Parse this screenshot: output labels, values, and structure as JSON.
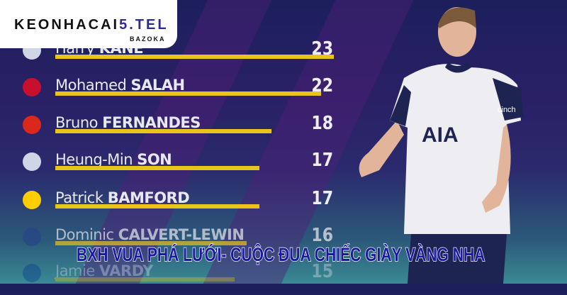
{
  "logo": {
    "main": "KEONHACAI",
    "accent": "5.TEL",
    "sub": "BAZOKA"
  },
  "headline": "BXH VUA PHÁ LƯỚI- CUỘC ĐUA CHIẾC GIÀY VÀNG NHA",
  "leaderboard": [
    {
      "first": "Harry",
      "last": "KANE",
      "goals": "23",
      "club_color": "#cfd6e6"
    },
    {
      "first": "Mohamed",
      "last": "SALAH",
      "goals": "22",
      "club_color": "#c8102e"
    },
    {
      "first": "Bruno",
      "last": "FERNANDES",
      "goals": "18",
      "club_color": "#da291c"
    },
    {
      "first": "Heung-Min",
      "last": "SON",
      "goals": "17",
      "club_color": "#cfd6e6"
    },
    {
      "first": "Patrick",
      "last": "BAMFORD",
      "goals": "17",
      "club_color": "#ffcd00"
    },
    {
      "first": "Dominic",
      "last": "CALVERT-LEWIN",
      "goals": "16",
      "club_color": "#274488"
    },
    {
      "first": "Jamie",
      "last": "VARDY",
      "goals": "15",
      "club_color": "#003090"
    }
  ],
  "colors": {
    "bar": "#e9c41c",
    "headline": "#1a1aa0"
  },
  "shirt_text": {
    "sponsor": "AIA",
    "sleeve": "cinch"
  }
}
